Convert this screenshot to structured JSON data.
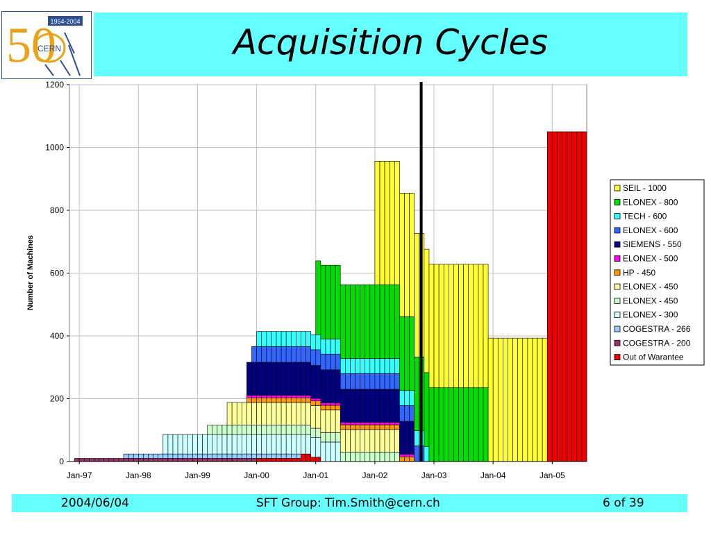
{
  "header": {
    "title": "Acquisition Cycles",
    "logo": {
      "top_text": "1954-2004",
      "name": "CERN",
      "number": "50"
    }
  },
  "footer": {
    "date": "2004/06/04",
    "author": "SFT Group: Tim.Smith@cern.ch",
    "page": "6 of 39"
  },
  "colors": {
    "header_bg": "#66ffff",
    "logo_gold": "#e8a317",
    "logo_blue": "#2d4f8f"
  },
  "chart_data": {
    "type": "area",
    "stacked": true,
    "ylabel": "Number of Machines",
    "xlabel": "",
    "ylim": [
      0,
      1200
    ],
    "yticks": [
      0,
      200,
      400,
      600,
      800,
      1000,
      1200
    ],
    "xlim": [
      "1996-11",
      "2005-08"
    ],
    "xticks": [
      "Jan-97",
      "Jan-98",
      "Jan-99",
      "Jan-00",
      "Jan-01",
      "Jan-02",
      "Jan-03",
      "Jan-04",
      "Jan-05"
    ],
    "grid": true,
    "legend_position": "right",
    "marker_line": "2002-10",
    "series": [
      {
        "name": "COGESTRA - 200",
        "color": "#993366",
        "start": "1996-12",
        "end": "2000-01",
        "height": 10,
        "retire": "2000-12"
      },
      {
        "name": "COGESTRA - 266",
        "color": "#99ccff",
        "start": "1997-10",
        "end": "2000-10",
        "height": 14,
        "retire": "2001-02"
      },
      {
        "name": "ELONEX - 300",
        "color": "#ccffff",
        "start": "1998-06",
        "end": "2001-06",
        "height": 62,
        "retire": "2001-06"
      },
      {
        "name": "ELONEX - 450",
        "color": "#ccffcc",
        "start": "1999-03",
        "end": "2002-06",
        "height": 30,
        "retire": "2002-06"
      },
      {
        "name": "ELONEX - 450",
        "color": "#ffff99",
        "start": "1999-07",
        "end": "2002-06",
        "height": 72,
        "retire": "2002-06"
      },
      {
        "name": "HP - 450",
        "color": "#ff9900",
        "start": "1999-11",
        "end": "2002-09",
        "height": 15,
        "retire": "2002-09"
      },
      {
        "name": "ELONEX - 500",
        "color": "#ff00ff",
        "start": "1999-11",
        "end": "2002-09",
        "height": 8,
        "retire": "2002-09"
      },
      {
        "name": "SIEMENS - 550",
        "color": "#000080",
        "start": "1999-11",
        "end": "2002-09",
        "height": 105,
        "retire": "2002-09"
      },
      {
        "name": "ELONEX - 600",
        "color": "#3366ff",
        "start": "1999-12",
        "end": "2002-11",
        "height": 50,
        "retire": "2002-11"
      },
      {
        "name": "TECH - 600",
        "color": "#33ffff",
        "start": "2000-01",
        "end": "2002-12",
        "height": 48,
        "retire": "2002-12"
      },
      {
        "name": "ELONEX - 800",
        "color": "#00dd00",
        "start": "2001-01",
        "end": "2003-12",
        "height": 235,
        "retire": "2003-12"
      },
      {
        "name": "SEIL - 1000",
        "color": "#ffff33",
        "start": "2002-01",
        "end": "2004-12",
        "height": 393,
        "retire": "2004-12"
      },
      {
        "name": "Out of Warantee",
        "color": "#ee0000",
        "kind": "out_of_warranty"
      }
    ]
  }
}
